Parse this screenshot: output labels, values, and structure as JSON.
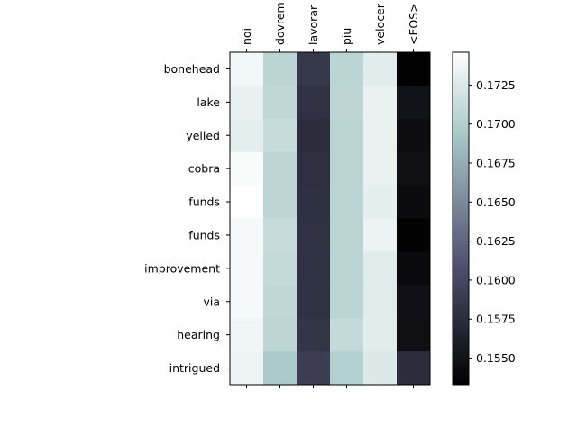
{
  "chart_data": {
    "type": "heatmap",
    "x_labels": [
      "noi",
      "dovrem",
      "lavorar",
      "piu",
      "velocer",
      "<EOS>"
    ],
    "y_labels": [
      "bonehead",
      "lake",
      "yelled",
      "cobra",
      "funds",
      "funds",
      "improvement",
      "via",
      "hearing",
      "intrigued"
    ],
    "values": [
      [
        0.1738,
        0.1705,
        0.1585,
        0.1705,
        0.1728,
        0.1533
      ],
      [
        0.1732,
        0.1708,
        0.158,
        0.1706,
        0.1733,
        0.155
      ],
      [
        0.173,
        0.1713,
        0.1575,
        0.1704,
        0.1733,
        0.1545
      ],
      [
        0.1743,
        0.1706,
        0.1577,
        0.1704,
        0.1733,
        0.1547
      ],
      [
        0.1746,
        0.1706,
        0.1579,
        0.1704,
        0.1731,
        0.1543
      ],
      [
        0.174,
        0.1712,
        0.158,
        0.1704,
        0.1735,
        0.1535
      ],
      [
        0.174,
        0.171,
        0.158,
        0.1704,
        0.1727,
        0.1542
      ],
      [
        0.174,
        0.1708,
        0.158,
        0.1704,
        0.1727,
        0.1548
      ],
      [
        0.1737,
        0.1706,
        0.1582,
        0.171,
        0.1728,
        0.1546
      ],
      [
        0.1736,
        0.1696,
        0.159,
        0.17,
        0.1725,
        0.1575
      ]
    ],
    "colormap": "bone",
    "vmin": 0.1533,
    "vmax": 0.1746,
    "colorbar_ticks": [
      "0.1550",
      "0.1575",
      "0.1600",
      "0.1625",
      "0.1650",
      "0.1675",
      "0.1700",
      "0.1725"
    ],
    "colorbar_tick_values": [
      0.155,
      0.1575,
      0.16,
      0.1625,
      0.165,
      0.1675,
      0.17,
      0.1725
    ],
    "x_tick_position": "top",
    "x_label_rotation": 90,
    "title": "",
    "xlabel": "",
    "ylabel": ""
  }
}
